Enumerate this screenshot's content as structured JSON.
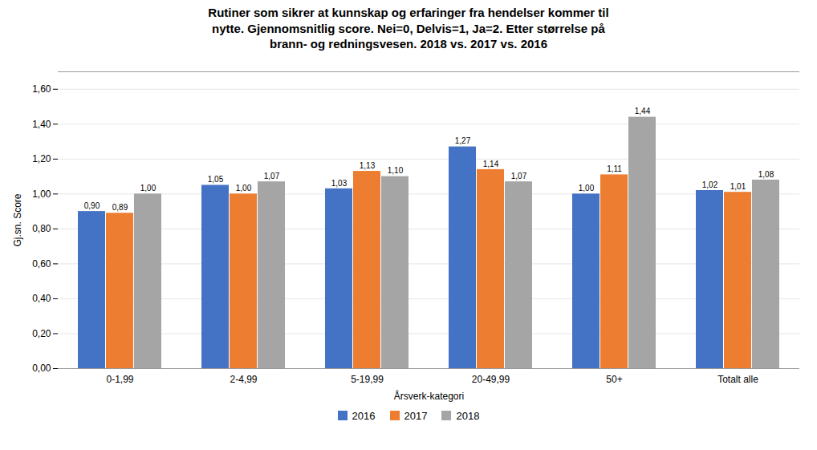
{
  "chart_data": {
    "type": "bar",
    "title": "Rutiner som sikrer at kunnskap og erfaringer fra hendelser kommer til\nnytte. Gjennomsnitlig score. Nei=0, Delvis=1, Ja=2. Etter størrelse på\nbrann- og redningsvesen. 2018 vs. 2017 vs. 2016",
    "xlabel": "Årsverk-kategori",
    "ylabel": "Gj.sn. Score",
    "categories": [
      "0-1,99",
      "2-4,99",
      "5-19,99",
      "20-49,99",
      "50+",
      "Totalt alle"
    ],
    "series": [
      {
        "name": "2016",
        "color": "#4472C4",
        "values": [
          0.9,
          1.05,
          1.03,
          1.27,
          1.0,
          1.02
        ],
        "value_labels": [
          "0,90",
          "1,05",
          "1,03",
          "1,27",
          "1,00",
          "1,02"
        ]
      },
      {
        "name": "2017",
        "color": "#ED7D31",
        "values": [
          0.89,
          1.0,
          1.13,
          1.14,
          1.11,
          1.01
        ],
        "value_labels": [
          "0,89",
          "1,00",
          "1,13",
          "1,14",
          "1,11",
          "1,01"
        ]
      },
      {
        "name": "2018",
        "color": "#A5A5A5",
        "values": [
          1.0,
          1.07,
          1.1,
          1.07,
          1.44,
          1.08
        ],
        "value_labels": [
          "1,00",
          "1,07",
          "1,10",
          "1,07",
          "1,44",
          "1,08"
        ]
      }
    ],
    "ylim": [
      0,
      1.7
    ],
    "yticks": [
      {
        "value": 0.0,
        "label": "0,00"
      },
      {
        "value": 0.2,
        "label": "0,20"
      },
      {
        "value": 0.4,
        "label": "0,40"
      },
      {
        "value": 0.6,
        "label": "0,60"
      },
      {
        "value": 0.8,
        "label": "0,80"
      },
      {
        "value": 1.0,
        "label": "1,00"
      },
      {
        "value": 1.2,
        "label": "1,20"
      },
      {
        "value": 1.4,
        "label": "1,40"
      },
      {
        "value": 1.6,
        "label": "1,60"
      }
    ],
    "grid": true,
    "legend": "bottom",
    "data_labels": true
  }
}
